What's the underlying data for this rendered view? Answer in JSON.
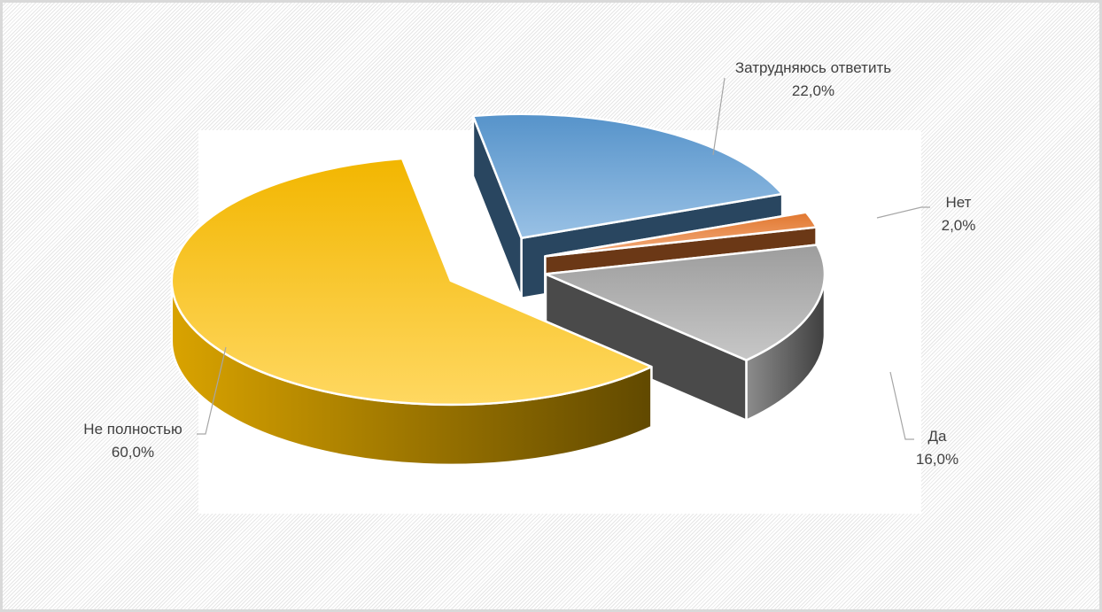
{
  "chart_data": {
    "type": "pie",
    "title": "",
    "categories": [
      "Затрудняюсь ответить",
      "Нет",
      "Да",
      "Не полностью"
    ],
    "values": [
      22.0,
      2.0,
      16.0,
      60.0
    ],
    "value_labels": [
      "22,0%",
      "2,0%",
      "16,0%",
      "60,0%"
    ],
    "three_d": true,
    "exploded": true,
    "data_labels": "outside with leader lines",
    "legend": "none",
    "colors": [
      "#5b9bd5",
      "#ed7d31",
      "#a5a5a5",
      "#ffc000"
    ]
  }
}
